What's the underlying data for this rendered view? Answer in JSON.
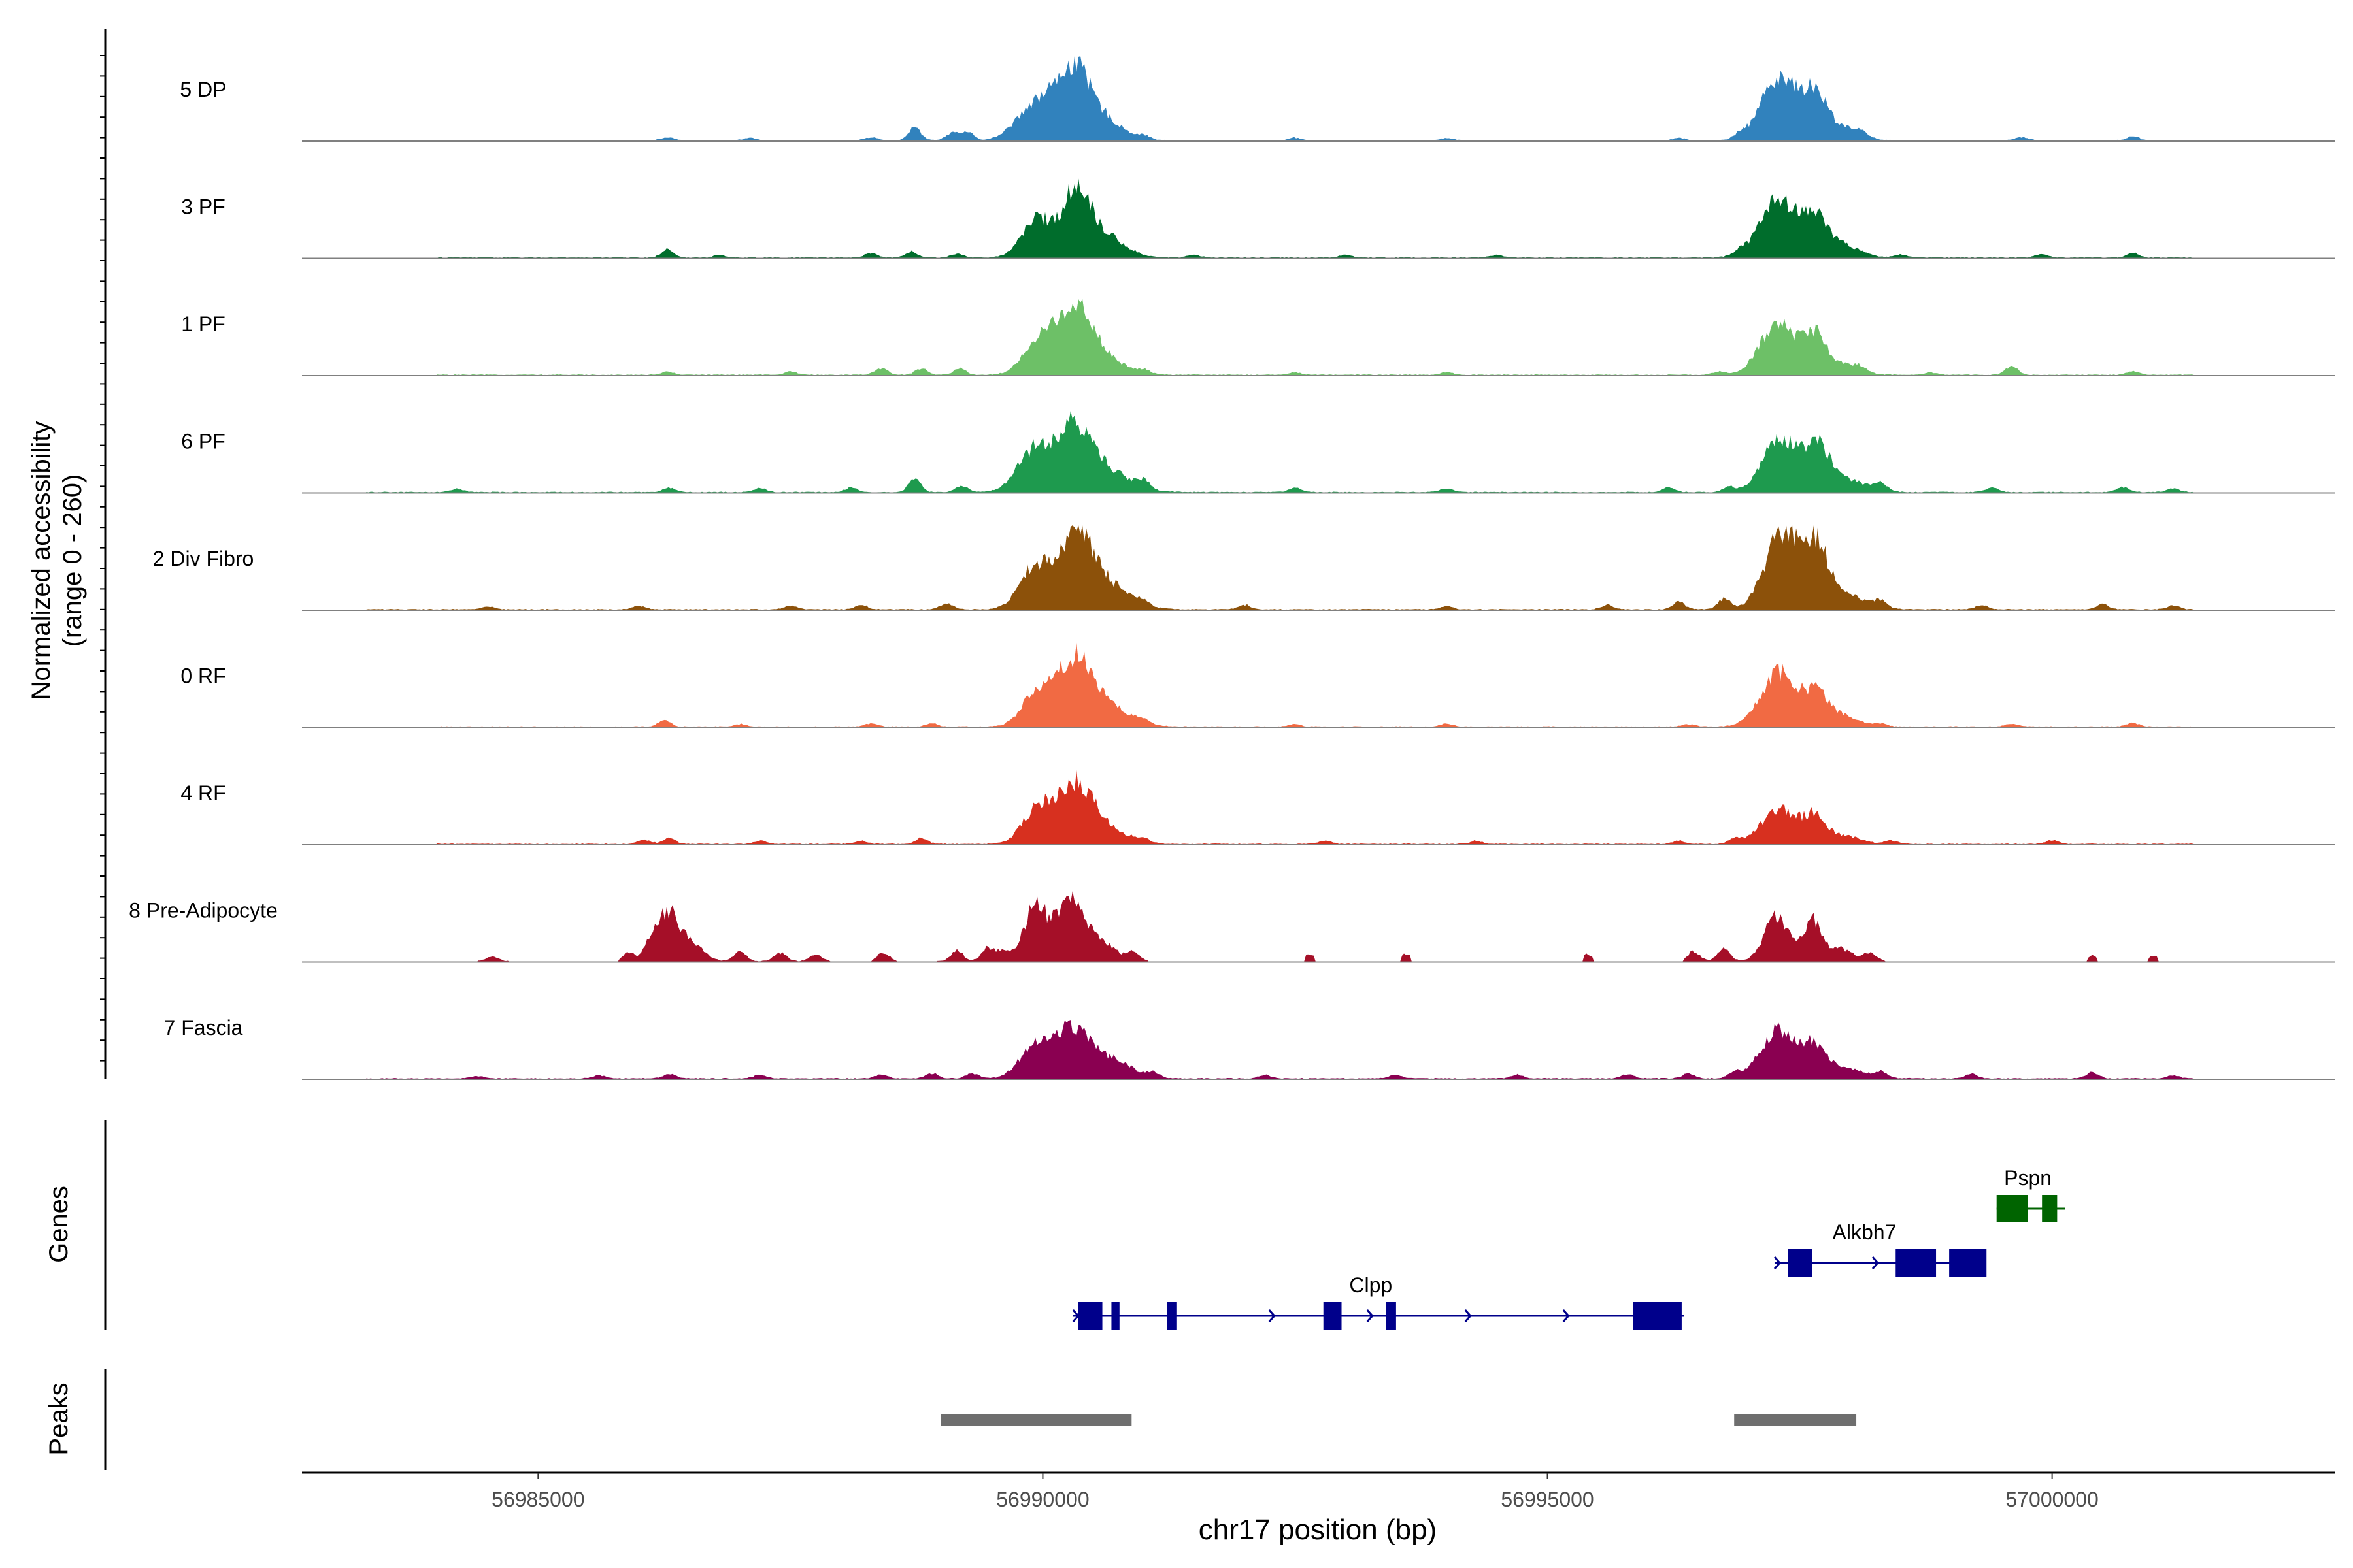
{
  "chart_data": {
    "type": "area",
    "title": "",
    "xlabel": "chr17 position (bp)",
    "ylabel_line1": "Normalized accessibility",
    "ylabel_line2": "(range 0 - 260)",
    "xlim": [
      56982660,
      57002800
    ],
    "ylim": [
      0,
      260
    ],
    "x_ticks": [
      56985000,
      56990000,
      56995000,
      57000000
    ],
    "x_tick_labels": [
      "56985000",
      "56990000",
      "56995000",
      "57000000"
    ],
    "tracks": [
      {
        "name": "5 DP",
        "color": "#3182BD",
        "regions": [
          [
            56984000,
            57001400
          ]
        ],
        "noise": [
          [
            56986280,
            10
          ],
          [
            56987100,
            8
          ],
          [
            56988300,
            10
          ],
          [
            56988730,
            40
          ],
          [
            56989100,
            22
          ],
          [
            56989250,
            26
          ],
          [
            56991000,
            10
          ],
          [
            56992500,
            8
          ],
          [
            56994000,
            8
          ],
          [
            56996300,
            8
          ],
          [
            56996900,
            14
          ],
          [
            56998100,
            10
          ],
          [
            56999700,
            10
          ],
          [
            57000800,
            12
          ]
        ],
        "peaks": [
          [
            56989910,
            110,
            175
          ],
          [
            56990290,
            215,
            165
          ],
          [
            56990600,
            60,
            200
          ],
          [
            56997290,
            205,
            170
          ],
          [
            56997650,
            150,
            115
          ],
          [
            56997950,
            40,
            150
          ]
        ]
      },
      {
        "name": "3 PF",
        "color": "#006D2C",
        "regions": [
          [
            56984000,
            57001400
          ]
        ],
        "noise": [
          [
            56986280,
            24
          ],
          [
            56986800,
            8
          ],
          [
            56988300,
            14
          ],
          [
            56988700,
            18
          ],
          [
            56989150,
            12
          ],
          [
            56991500,
            8
          ],
          [
            56993000,
            8
          ],
          [
            56994500,
            8
          ],
          [
            56996900,
            12
          ],
          [
            56998500,
            10
          ],
          [
            56999900,
            12
          ],
          [
            57000800,
            14
          ]
        ],
        "peaks": [
          [
            56989950,
            120,
            150
          ],
          [
            56990330,
            195,
            135
          ],
          [
            56990600,
            70,
            200
          ],
          [
            56997290,
            180,
            185
          ],
          [
            56997660,
            110,
            130
          ],
          [
            56997950,
            35,
            160
          ]
        ]
      },
      {
        "name": "1 PF",
        "color": "#6DC067",
        "regions": [
          [
            56984000,
            57001400
          ]
        ],
        "noise": [
          [
            56986280,
            10
          ],
          [
            56987500,
            10
          ],
          [
            56988400,
            22
          ],
          [
            56988800,
            20
          ],
          [
            56989180,
            20
          ],
          [
            56991000,
            10
          ],
          [
            56992500,
            8
          ],
          [
            56994000,
            8
          ],
          [
            56996700,
            10
          ],
          [
            56998100,
            12
          ],
          [
            56998800,
            8
          ],
          [
            56999600,
            26
          ],
          [
            57000800,
            12
          ]
        ],
        "peaks": [
          [
            56989970,
            110,
            155
          ],
          [
            56990330,
            210,
            165
          ],
          [
            56990650,
            40,
            200
          ],
          [
            56997280,
            160,
            170
          ],
          [
            56997650,
            120,
            120
          ],
          [
            56997950,
            30,
            150
          ]
        ]
      },
      {
        "name": "6 PF",
        "color": "#1E9A4E",
        "regions": [
          [
            56983300,
            57001400
          ]
        ],
        "noise": [
          [
            56984200,
            10
          ],
          [
            56986300,
            14
          ],
          [
            56987200,
            12
          ],
          [
            56988100,
            14
          ],
          [
            56988730,
            40
          ],
          [
            56989200,
            20
          ],
          [
            56991000,
            24
          ],
          [
            56992500,
            14
          ],
          [
            56994000,
            12
          ],
          [
            56996200,
            14
          ],
          [
            56996800,
            16
          ],
          [
            56998300,
            26
          ],
          [
            56999400,
            14
          ],
          [
            57000700,
            16
          ],
          [
            57001200,
            12
          ]
        ],
        "peaks": [
          [
            56989910,
            130,
            160
          ],
          [
            56990310,
            195,
            170
          ],
          [
            56990650,
            60,
            230
          ],
          [
            56997310,
            170,
            170
          ],
          [
            56997670,
            135,
            115
          ],
          [
            56997950,
            40,
            200
          ]
        ]
      },
      {
        "name": "2 Div Fibro",
        "color": "#8C510A",
        "regions": [
          [
            56983300,
            57001400
          ]
        ],
        "noise": [
          [
            56984500,
            10
          ],
          [
            56986000,
            12
          ],
          [
            56987500,
            12
          ],
          [
            56988200,
            14
          ],
          [
            56989050,
            20
          ],
          [
            56991000,
            12
          ],
          [
            56992000,
            14
          ],
          [
            56994000,
            10
          ],
          [
            56995600,
            14
          ],
          [
            56996300,
            24
          ],
          [
            56996750,
            34
          ],
          [
            56998300,
            20
          ],
          [
            56999300,
            14
          ],
          [
            57000500,
            18
          ],
          [
            57001200,
            12
          ]
        ],
        "peaks": [
          [
            56989920,
            130,
            150
          ],
          [
            56990320,
            220,
            170
          ],
          [
            56990650,
            70,
            220
          ],
          [
            56997330,
            240,
            170
          ],
          [
            56997670,
            170,
            120
          ],
          [
            56997950,
            45,
            200
          ]
        ]
      },
      {
        "name": "0 RF",
        "color": "#F16A43",
        "regions": [
          [
            56984000,
            57001400
          ]
        ],
        "noise": [
          [
            56986250,
            20
          ],
          [
            56987000,
            8
          ],
          [
            56988300,
            10
          ],
          [
            56988900,
            10
          ],
          [
            56991000,
            10
          ],
          [
            56992500,
            8
          ],
          [
            56994000,
            8
          ],
          [
            56996400,
            8
          ],
          [
            56998300,
            10
          ],
          [
            56999600,
            10
          ],
          [
            57000800,
            12
          ]
        ],
        "peaks": [
          [
            56989950,
            115,
            145
          ],
          [
            56990320,
            200,
            165
          ],
          [
            56990650,
            60,
            220
          ],
          [
            56997290,
            170,
            175
          ],
          [
            56997670,
            100,
            120
          ],
          [
            56997950,
            30,
            150
          ]
        ]
      },
      {
        "name": "4 RF",
        "color": "#D7301F",
        "regions": [
          [
            56984000,
            57001400
          ]
        ],
        "noise": [
          [
            56986050,
            14
          ],
          [
            56986300,
            18
          ],
          [
            56987200,
            10
          ],
          [
            56988200,
            10
          ],
          [
            56988800,
            18
          ],
          [
            56991000,
            10
          ],
          [
            56992800,
            10
          ],
          [
            56994300,
            10
          ],
          [
            56996300,
            10
          ],
          [
            56996850,
            14
          ],
          [
            56998400,
            12
          ],
          [
            57000000,
            12
          ]
        ],
        "peaks": [
          [
            56989950,
            110,
            145
          ],
          [
            56990320,
            185,
            165
          ],
          [
            56990650,
            45,
            200
          ],
          [
            56997290,
            110,
            175
          ],
          [
            56997650,
            80,
            110
          ],
          [
            56997950,
            25,
            150
          ]
        ]
      },
      {
        "name": "8 Pre-Adipocyte",
        "color": "#A50F28",
        "regions": [
          [
            56984400,
            56984700
          ],
          [
            56985800,
            56987900
          ],
          [
            56988300,
            56988550
          ],
          [
            56988950,
            56991050
          ],
          [
            56992600,
            56992700
          ],
          [
            56993550,
            56993650
          ],
          [
            56995350,
            56995450
          ],
          [
            56996350,
            56998350
          ],
          [
            57000350,
            57000450
          ],
          [
            57000950,
            57001050
          ]
        ],
        "noise": [
          [
            56984550,
            14
          ],
          [
            56985900,
            28
          ],
          [
            56986100,
            34
          ],
          [
            56987000,
            30
          ],
          [
            56987400,
            26
          ],
          [
            56987750,
            20
          ],
          [
            56988420,
            26
          ],
          [
            56989150,
            34
          ],
          [
            56989450,
            38
          ],
          [
            56990900,
            28
          ],
          [
            56992650,
            22
          ],
          [
            56993600,
            22
          ],
          [
            56995400,
            22
          ],
          [
            56996450,
            30
          ],
          [
            56996750,
            44
          ],
          [
            56998200,
            28
          ],
          [
            57000400,
            16
          ],
          [
            57001000,
            16
          ]
        ],
        "peaks": [
          [
            56986280,
            150,
            110
          ],
          [
            56986520,
            50,
            120
          ],
          [
            56989600,
            30,
            80
          ],
          [
            56989930,
            180,
            110
          ],
          [
            56990260,
            205,
            120
          ],
          [
            56990550,
            70,
            150
          ],
          [
            56997270,
            140,
            120
          ],
          [
            56997620,
            130,
            90
          ],
          [
            56997900,
            40,
            120
          ]
        ]
      },
      {
        "name": "7 Fascia",
        "color": "#8A0051",
        "regions": [
          [
            56983300,
            57001400
          ]
        ],
        "noise": [
          [
            56984400,
            8
          ],
          [
            56985600,
            10
          ],
          [
            56986300,
            14
          ],
          [
            56987200,
            12
          ],
          [
            56988400,
            12
          ],
          [
            56988900,
            16
          ],
          [
            56989300,
            16
          ],
          [
            56991100,
            14
          ],
          [
            56992200,
            12
          ],
          [
            56993500,
            12
          ],
          [
            56994700,
            12
          ],
          [
            56995800,
            14
          ],
          [
            56996400,
            16
          ],
          [
            56996850,
            18
          ],
          [
            56998300,
            16
          ],
          [
            56999200,
            14
          ],
          [
            57000400,
            18
          ],
          [
            57001200,
            10
          ]
        ],
        "peaks": [
          [
            56989920,
            100,
            150
          ],
          [
            56990280,
            145,
            170
          ],
          [
            56990660,
            60,
            210
          ],
          [
            56997290,
            150,
            175
          ],
          [
            56997640,
            90,
            120
          ],
          [
            56997950,
            30,
            200
          ]
        ]
      }
    ],
    "genes": [
      {
        "name": "Clpp",
        "strand": "+",
        "color": "#00008B",
        "row": 3,
        "start": 56990300,
        "end": 56996350,
        "exons": [
          [
            56990350,
            56990590
          ],
          [
            56990680,
            56990760
          ],
          [
            56991230,
            56991330
          ],
          [
            56992780,
            56992960
          ],
          [
            56993400,
            56993500
          ],
          [
            56995850,
            56996330
          ]
        ],
        "label_x": 56993250
      },
      {
        "name": "Alkbh7",
        "strand": "+",
        "color": "#00008B",
        "row": 2,
        "start": 56997250,
        "end": 56999250,
        "exons": [
          [
            56997380,
            56997620
          ],
          [
            56998450,
            56998850
          ],
          [
            56998980,
            56999350
          ]
        ],
        "label_x": 56998140
      },
      {
        "name": "Pspn",
        "strand": "-",
        "color": "#006400",
        "row": 1,
        "start": 56999450,
        "end": 57000130,
        "exons": [
          [
            56999450,
            56999760
          ],
          [
            56999900,
            57000050
          ]
        ],
        "label_x": 56999760
      }
    ],
    "peaks_track": [
      [
        56988990,
        56990880
      ],
      [
        56996850,
        56998060
      ]
    ],
    "peaks_color": "#6E6E6E",
    "panel_labels": {
      "genes": "Genes",
      "peaks": "Peaks"
    }
  }
}
